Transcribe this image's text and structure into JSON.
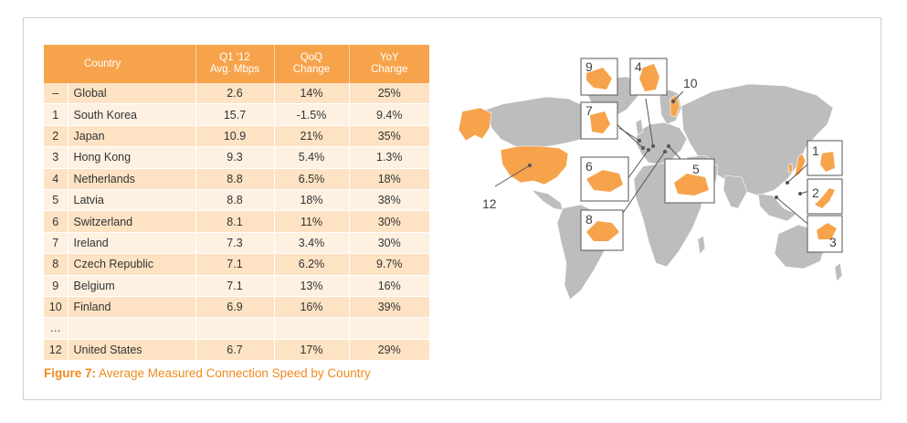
{
  "chart_data": {
    "type": "table",
    "columns": [
      {
        "key": "rank",
        "label": ""
      },
      {
        "key": "country",
        "label": "Country"
      },
      {
        "key": "avg",
        "label": "Q1 '12 Avg. Mbps"
      },
      {
        "key": "qoq",
        "label": "QoQ Change"
      },
      {
        "key": "yoy",
        "label": "YoY Change"
      }
    ],
    "header": {
      "country": "Country",
      "avg_line1": "Q1 '12",
      "avg_line2": "Avg. Mbps",
      "qoq_line1": "QoQ",
      "qoq_line2": "Change",
      "yoy_line1": "YoY",
      "yoy_line2": "Change"
    },
    "rows": [
      {
        "rank": "–",
        "country": "Global",
        "avg": "2.6",
        "qoq": "14%",
        "yoy": "25%"
      },
      {
        "rank": "1",
        "country": "South Korea",
        "avg": "15.7",
        "qoq": "-1.5%",
        "yoy": "9.4%"
      },
      {
        "rank": "2",
        "country": "Japan",
        "avg": "10.9",
        "qoq": "21%",
        "yoy": "35%"
      },
      {
        "rank": "3",
        "country": "Hong Kong",
        "avg": "9.3",
        "qoq": "5.4%",
        "yoy": "1.3%"
      },
      {
        "rank": "4",
        "country": "Netherlands",
        "avg": "8.8",
        "qoq": "6.5%",
        "yoy": "18%"
      },
      {
        "rank": "5",
        "country": "Latvia",
        "avg": "8.8",
        "qoq": "18%",
        "yoy": "38%"
      },
      {
        "rank": "6",
        "country": "Switzerland",
        "avg": "8.1",
        "qoq": "11%",
        "yoy": "30%"
      },
      {
        "rank": "7",
        "country": "Ireland",
        "avg": "7.3",
        "qoq": "3.4%",
        "yoy": "30%"
      },
      {
        "rank": "8",
        "country": "Czech Republic",
        "avg": "7.1",
        "qoq": "6.2%",
        "yoy": "9.7%"
      },
      {
        "rank": "9",
        "country": "Belgium",
        "avg": "7.1",
        "qoq": "13%",
        "yoy": "16%"
      },
      {
        "rank": "10",
        "country": "Finland",
        "avg": "6.9",
        "qoq": "16%",
        "yoy": "39%"
      },
      {
        "rank": "…",
        "country": "",
        "avg": "",
        "qoq": "",
        "yoy": ""
      },
      {
        "rank": "12",
        "country": "United States",
        "avg": "6.7",
        "qoq": "17%",
        "yoy": "29%"
      }
    ],
    "caption_prefix": "Figure 7:",
    "caption_text": " Average Measured Connection Speed by Country"
  },
  "map": {
    "callouts": [
      "1",
      "2",
      "3",
      "4",
      "5",
      "6",
      "7",
      "8",
      "9",
      "10",
      "12"
    ]
  },
  "colors": {
    "header": "#f7a34b",
    "row_odd": "#fde3c4",
    "row_even": "#fef1e2",
    "caption": "#f08a1c",
    "land": "#bdbdbd",
    "highlight": "#f7a34b"
  }
}
